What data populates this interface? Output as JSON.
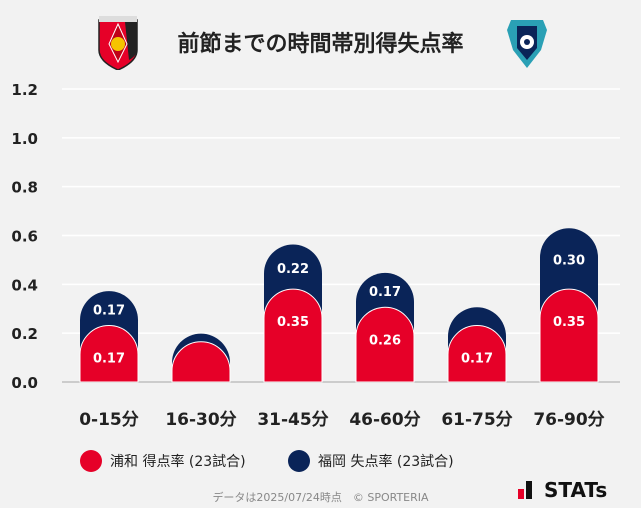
{
  "title": "前節までの時間帯別得失点率",
  "chart_data": {
    "type": "bar",
    "stacked": true,
    "categories": [
      "0-15分",
      "16-30分",
      "31-45分",
      "46-60分",
      "61-75分",
      "76-90分"
    ],
    "series": [
      {
        "name": "浦和 得点率 (23試合)",
        "color": "#e60028",
        "values": [
          0.17,
          0.09,
          0.35,
          0.26,
          0.17,
          0.35
        ],
        "labels": [
          "0.17",
          "",
          "0.35",
          "0.26",
          "0.17",
          "0.35"
        ]
      },
      {
        "name": "福岡 失点率 (23試合)",
        "color": "#0a2458",
        "values": [
          0.17,
          0.04,
          0.22,
          0.17,
          0.09,
          0.3
        ],
        "labels": [
          "0.17",
          "",
          "0.22",
          "0.17",
          "",
          "0.30"
        ]
      }
    ],
    "ylim": [
      0,
      1.2
    ],
    "yticks": [
      "0.0",
      "0.2",
      "0.4",
      "0.6",
      "0.8",
      "1.0",
      "1.2"
    ],
    "grid": true,
    "legend": "bottom"
  },
  "legend": {
    "home": "浦和 得点率 (23試合)",
    "away": "福岡 失点率 (23試合)"
  },
  "footer": "データは2025/07/24時点　© SPORTERIA",
  "brand": "STATs"
}
